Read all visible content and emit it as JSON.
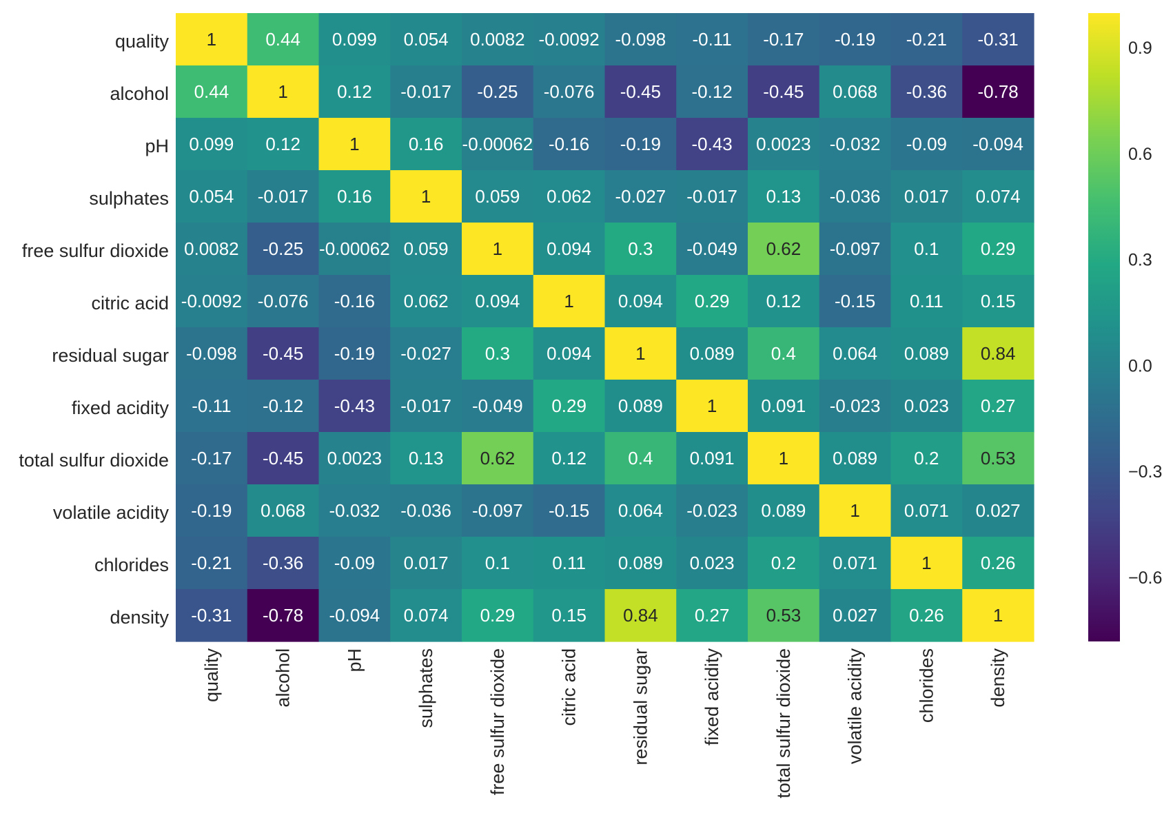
{
  "chart_data": {
    "type": "heatmap",
    "title": "",
    "xlabel": "",
    "ylabel": "",
    "colormap": "viridis",
    "vmin": -0.78,
    "vmax": 1,
    "row_labels": [
      "quality",
      "alcohol",
      "pH",
      "sulphates",
      "free sulfur dioxide",
      "citric acid",
      "residual sugar",
      "fixed acidity",
      "total sulfur dioxide",
      "volatile acidity",
      "chlorides",
      "density"
    ],
    "col_labels": [
      "quality",
      "alcohol",
      "pH",
      "sulphates",
      "free sulfur dioxide",
      "citric acid",
      "residual sugar",
      "fixed acidity",
      "total sulfur dioxide",
      "volatile acidity",
      "chlorides",
      "density"
    ],
    "values": [
      [
        1,
        0.44,
        0.099,
        0.054,
        0.0082,
        -0.0092,
        -0.098,
        -0.11,
        -0.17,
        -0.19,
        -0.21,
        -0.31
      ],
      [
        0.44,
        1,
        0.12,
        -0.017,
        -0.25,
        -0.076,
        -0.45,
        -0.12,
        -0.45,
        0.068,
        -0.36,
        -0.78
      ],
      [
        0.099,
        0.12,
        1,
        0.16,
        -0.00062,
        -0.16,
        -0.19,
        -0.43,
        0.0023,
        -0.032,
        -0.09,
        -0.094
      ],
      [
        0.054,
        -0.017,
        0.16,
        1,
        0.059,
        0.062,
        -0.027,
        -0.017,
        0.13,
        -0.036,
        0.017,
        0.074
      ],
      [
        0.0082,
        -0.25,
        -0.00062,
        0.059,
        1,
        0.094,
        0.3,
        -0.049,
        0.62,
        -0.097,
        0.1,
        0.29
      ],
      [
        -0.0092,
        -0.076,
        -0.16,
        0.062,
        0.094,
        1,
        0.094,
        0.29,
        0.12,
        -0.15,
        0.11,
        0.15
      ],
      [
        -0.098,
        -0.45,
        -0.19,
        -0.027,
        0.3,
        0.094,
        1,
        0.089,
        0.4,
        0.064,
        0.089,
        0.84
      ],
      [
        -0.11,
        -0.12,
        -0.43,
        -0.017,
        -0.049,
        0.29,
        0.089,
        1,
        0.091,
        -0.023,
        0.023,
        0.27
      ],
      [
        -0.17,
        -0.45,
        0.0023,
        0.13,
        0.62,
        0.12,
        0.4,
        0.091,
        1,
        0.089,
        0.2,
        0.53
      ],
      [
        -0.19,
        0.068,
        -0.032,
        -0.036,
        -0.097,
        -0.15,
        0.064,
        -0.023,
        0.089,
        1,
        0.071,
        0.027
      ],
      [
        -0.21,
        -0.36,
        -0.09,
        0.017,
        0.1,
        0.11,
        0.089,
        0.023,
        0.2,
        0.071,
        1,
        0.26
      ],
      [
        -0.31,
        -0.78,
        -0.094,
        0.074,
        0.29,
        0.15,
        0.84,
        0.27,
        0.53,
        0.027,
        0.26,
        1
      ]
    ],
    "cell_labels": [
      [
        "1",
        "0.44",
        "0.099",
        "0.054",
        "0.0082",
        "-0.0092",
        "-0.098",
        "-0.11",
        "-0.17",
        "-0.19",
        "-0.21",
        "-0.31"
      ],
      [
        "0.44",
        "1",
        "0.12",
        "-0.017",
        "-0.25",
        "-0.076",
        "-0.45",
        "-0.12",
        "-0.45",
        "0.068",
        "-0.36",
        "-0.78"
      ],
      [
        "0.099",
        "0.12",
        "1",
        "0.16",
        "-0.00062",
        "-0.16",
        "-0.19",
        "-0.43",
        "0.0023",
        "-0.032",
        "-0.09",
        "-0.094"
      ],
      [
        "0.054",
        "-0.017",
        "0.16",
        "1",
        "0.059",
        "0.062",
        "-0.027",
        "-0.017",
        "0.13",
        "-0.036",
        "0.017",
        "0.074"
      ],
      [
        "0.0082",
        "-0.25",
        "-0.00062",
        "0.059",
        "1",
        "0.094",
        "0.3",
        "-0.049",
        "0.62",
        "-0.097",
        "0.1",
        "0.29"
      ],
      [
        "-0.0092",
        "-0.076",
        "-0.16",
        "0.062",
        "0.094",
        "1",
        "0.094",
        "0.29",
        "0.12",
        "-0.15",
        "0.11",
        "0.15"
      ],
      [
        "-0.098",
        "-0.45",
        "-0.19",
        "-0.027",
        "0.3",
        "0.094",
        "1",
        "0.089",
        "0.4",
        "0.064",
        "0.089",
        "0.84"
      ],
      [
        "-0.11",
        "-0.12",
        "-0.43",
        "-0.017",
        "-0.049",
        "0.29",
        "0.089",
        "1",
        "0.091",
        "-0.023",
        "0.023",
        "0.27"
      ],
      [
        "-0.17",
        "-0.45",
        "0.0023",
        "0.13",
        "0.62",
        "0.12",
        "0.4",
        "0.091",
        "1",
        "0.089",
        "0.2",
        "0.53"
      ],
      [
        "-0.19",
        "0.068",
        "-0.032",
        "-0.036",
        "-0.097",
        "-0.15",
        "0.064",
        "-0.023",
        "0.089",
        "1",
        "0.071",
        "0.027"
      ],
      [
        "-0.21",
        "-0.36",
        "-0.09",
        "0.017",
        "0.1",
        "0.11",
        "0.089",
        "0.023",
        "0.2",
        "0.071",
        "1",
        "0.26"
      ],
      [
        "-0.31",
        "-0.78",
        "-0.094",
        "0.074",
        "0.29",
        "0.15",
        "0.84",
        "0.27",
        "0.53",
        "0.027",
        "0.26",
        "1"
      ]
    ],
    "colorbar": {
      "ticks": [
        0.9,
        0.6,
        0.3,
        0.0,
        -0.3,
        -0.6
      ],
      "tick_labels": [
        "0.9",
        "0.6",
        "0.3",
        "0.0",
        "−0.3",
        "−0.6"
      ]
    },
    "grid": false,
    "legend": "colorbar-right"
  }
}
